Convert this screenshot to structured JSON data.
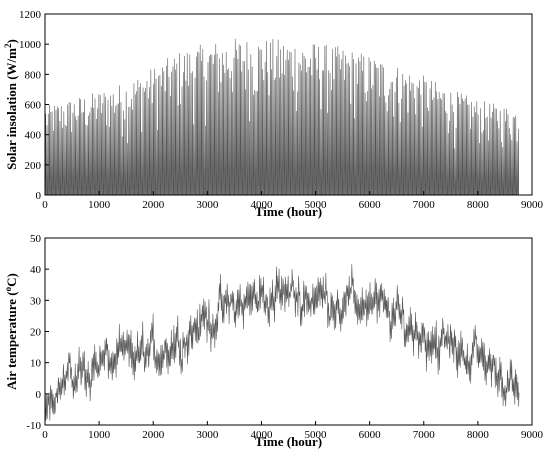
{
  "chart_data": [
    {
      "type": "line",
      "xlabel": "Time (hour)",
      "ylabel_main": "Solar insolation (W/m",
      "ylabel_sup": "2",
      "ylabel_tail": ")",
      "xlim": [
        0,
        9000
      ],
      "ylim": [
        0,
        1200
      ],
      "xticks": [
        0,
        1000,
        2000,
        3000,
        4000,
        5000,
        6000,
        7000,
        8000,
        9000
      ],
      "yticks": [
        0,
        200,
        400,
        600,
        800,
        1000,
        1200
      ],
      "envelope": {
        "x": [
          0,
          500,
          1000,
          1500,
          2000,
          2500,
          3000,
          3500,
          4000,
          4500,
          5000,
          5500,
          6000,
          6500,
          7000,
          7500,
          8000,
          8500,
          8760
        ],
        "y": [
          590,
          640,
          690,
          750,
          850,
          960,
          1010,
          1040,
          1040,
          1030,
          1010,
          980,
          930,
          860,
          790,
          700,
          630,
          590,
          570
        ]
      },
      "series": [
        {
          "values_note": "hourly series, 0–8760 h",
          "color": "#555555"
        }
      ],
      "grid": false
    },
    {
      "type": "line",
      "xlabel": "Time (hour)",
      "ylabel_main": "Air temperature (",
      "ylabel_sup": "o",
      "ylabel_tail": "C)",
      "xlim": [
        0,
        9000
      ],
      "ylim": [
        -10,
        50
      ],
      "xticks": [
        0,
        1000,
        2000,
        3000,
        4000,
        5000,
        6000,
        7000,
        8000,
        9000
      ],
      "yticks": [
        -10,
        0,
        10,
        20,
        30,
        40,
        50
      ],
      "trend": {
        "x": [
          0,
          500,
          1000,
          1500,
          2000,
          2500,
          3000,
          3500,
          4000,
          4500,
          5000,
          5500,
          6000,
          6500,
          7000,
          7500,
          8000,
          8500,
          8760
        ],
        "y": [
          0,
          5,
          10,
          11,
          13,
          18,
          24,
          28,
          31,
          32,
          31,
          30,
          29,
          24,
          19,
          15,
          12,
          6,
          -3
        ]
      },
      "series": [
        {
          "color": "#555555"
        }
      ],
      "grid": false
    }
  ]
}
